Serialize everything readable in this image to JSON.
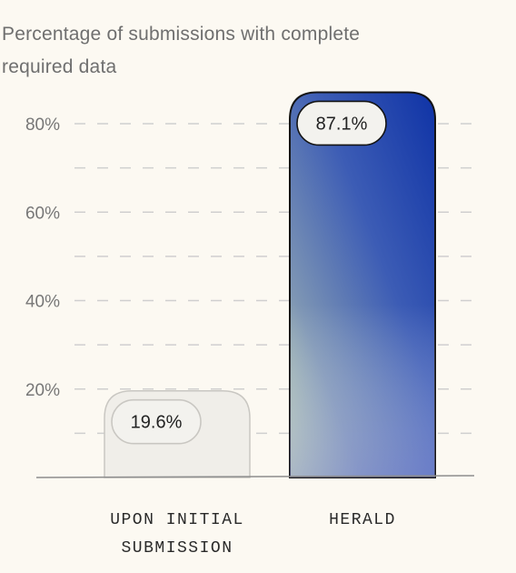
{
  "chart_data": {
    "type": "bar",
    "title": "Percentage of submissions with complete required data",
    "xlabel": "",
    "ylabel": "",
    "categories": [
      "UPON INITIAL SUBMISSION",
      "HERALD"
    ],
    "category_lines": [
      [
        "UPON INITIAL",
        "SUBMISSION"
      ],
      [
        "HERALD"
      ]
    ],
    "values": [
      19.6,
      87.1
    ],
    "value_labels": [
      "19.6%",
      "87.1%"
    ],
    "yticks": [
      20,
      40,
      60,
      80
    ],
    "ytick_labels": [
      "20%",
      "40%",
      "60%",
      "80%"
    ],
    "ylim": [
      0,
      100
    ],
    "grid": true,
    "grid_step": 10,
    "colors": {
      "baseline_bar_fill": "#f0eee9",
      "baseline_bar_stroke": "#c9c7c2",
      "highlight_bar_gradient": [
        "#0f33a6",
        "#3c5cb5",
        "#7e96b4",
        "#c6d9b0"
      ],
      "highlight_bar_stroke": "#141414",
      "label_pill_fill": "#f3f2ee",
      "grid_line": "#cfcfcf",
      "axis_line": "#8d8d8d"
    }
  }
}
